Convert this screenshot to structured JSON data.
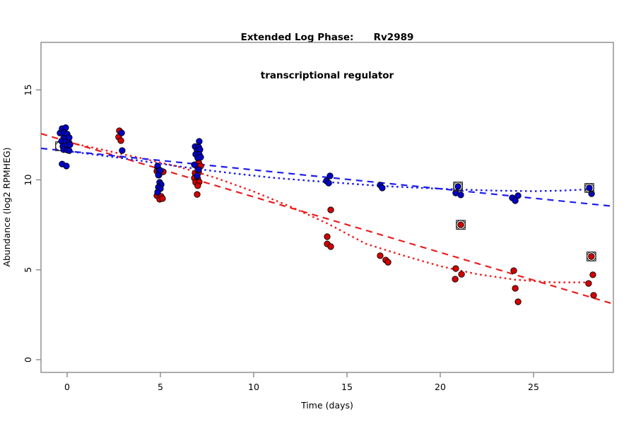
{
  "window": {
    "kind": "r-plot-figure"
  },
  "chart_data": {
    "type": "scatter",
    "title_line1": "Extended Log Phase:      Rv2989",
    "title_line2": "transcriptional regulator",
    "xlabel": "Time  (days)",
    "ylabel": "Abundance  (log2 RPMHEG)",
    "xlim": [
      -1.4,
      29.28
    ],
    "ylim": [
      -0.71,
      17.64
    ],
    "x_ticks": [
      0,
      5,
      10,
      15,
      20,
      25
    ],
    "y_ticks": [
      0,
      5,
      10,
      15
    ],
    "grid": "off",
    "legend": "none",
    "axis_color": "#8a8a8a",
    "label_color": "#000000",
    "series": [
      {
        "name": "red-condition",
        "point_color": "#d40000",
        "line_color": "#ee1c1c",
        "points": [
          [
            2.8,
            12.73
          ],
          [
            2.76,
            12.38
          ],
          [
            2.88,
            12.18
          ],
          [
            4.85,
            10.69
          ],
          [
            4.81,
            10.48
          ],
          [
            5.15,
            10.45
          ],
          [
            4.92,
            10.26
          ],
          [
            4.81,
            9.12
          ],
          [
            5.04,
            9.08
          ],
          [
            4.96,
            8.92
          ],
          [
            5.11,
            8.96
          ],
          [
            7.05,
            10.96
          ],
          [
            7.0,
            10.73
          ],
          [
            7.16,
            10.77
          ],
          [
            6.86,
            10.37
          ],
          [
            7.05,
            10.41
          ],
          [
            6.82,
            10.1
          ],
          [
            7.0,
            10.06
          ],
          [
            6.89,
            9.86
          ],
          [
            7.08,
            9.88
          ],
          [
            7.0,
            9.67
          ],
          [
            6.97,
            9.19
          ],
          [
            14.13,
            8.33
          ],
          [
            13.94,
            6.84
          ],
          [
            13.94,
            6.44
          ],
          [
            14.13,
            6.29
          ],
          [
            16.78,
            5.78
          ],
          [
            17.08,
            5.54
          ],
          [
            17.2,
            5.42
          ],
          [
            20.83,
            5.07
          ],
          [
            21.14,
            4.75
          ],
          [
            20.8,
            4.48
          ],
          [
            23.94,
            4.95
          ],
          [
            24.02,
            3.97
          ],
          [
            24.17,
            3.22
          ],
          [
            28.18,
            4.72
          ],
          [
            27.95,
            4.24
          ],
          [
            28.22,
            3.58
          ]
        ],
        "flagged_points": [
          [
            21.1,
            7.5
          ],
          [
            28.1,
            5.74
          ]
        ],
        "linear_fit": {
          "x": [
            -1.4,
            29.28
          ],
          "y": [
            12.57,
            3.1
          ]
        },
        "smooth_fit": [
          [
            0,
            12.1
          ],
          [
            2,
            11.65
          ],
          [
            4,
            11.2
          ],
          [
            6,
            10.72
          ],
          [
            8,
            10.1
          ],
          [
            10,
            9.35
          ],
          [
            12,
            8.5
          ],
          [
            14,
            7.55
          ],
          [
            16,
            6.45
          ],
          [
            18,
            5.8
          ],
          [
            20,
            5.2
          ],
          [
            22,
            4.75
          ],
          [
            24,
            4.45
          ],
          [
            26,
            4.3
          ],
          [
            28.1,
            4.3
          ]
        ]
      },
      {
        "name": "blue-condition",
        "point_color": "#0000c8",
        "line_color": "#1c1cee",
        "points": [
          [
            -0.27,
            12.85
          ],
          [
            -0.08,
            12.9
          ],
          [
            -0.38,
            12.6
          ],
          [
            -0.15,
            12.62
          ],
          [
            0.0,
            12.55
          ],
          [
            -0.19,
            12.3
          ],
          [
            0.11,
            12.35
          ],
          [
            -0.3,
            12.15
          ],
          [
            -0.08,
            12.1
          ],
          [
            0.11,
            12.05
          ],
          [
            -0.23,
            11.87
          ],
          [
            0.0,
            11.92
          ],
          [
            0.15,
            11.95
          ],
          [
            -0.19,
            11.68
          ],
          [
            0.0,
            11.66
          ],
          [
            0.11,
            11.62
          ],
          [
            -0.27,
            10.88
          ],
          [
            -0.04,
            10.77
          ],
          [
            2.92,
            12.61
          ],
          [
            2.95,
            11.63
          ],
          [
            4.85,
            10.77
          ],
          [
            4.92,
            10.5
          ],
          [
            5.0,
            10.52
          ],
          [
            4.89,
            10.26
          ],
          [
            4.96,
            9.86
          ],
          [
            5.04,
            9.74
          ],
          [
            4.89,
            9.59
          ],
          [
            5.0,
            9.51
          ],
          [
            4.85,
            9.31
          ],
          [
            7.08,
            12.14
          ],
          [
            6.86,
            11.85
          ],
          [
            7.05,
            11.82
          ],
          [
            6.97,
            11.63
          ],
          [
            7.12,
            11.68
          ],
          [
            6.89,
            11.42
          ],
          [
            7.08,
            11.42
          ],
          [
            7.0,
            11.22
          ],
          [
            7.16,
            11.26
          ],
          [
            6.82,
            10.84
          ],
          [
            7.05,
            10.57
          ],
          [
            6.97,
            10.22
          ],
          [
            14.09,
            10.22
          ],
          [
            13.9,
            9.94
          ],
          [
            14.02,
            9.82
          ],
          [
            16.78,
            9.71
          ],
          [
            16.89,
            9.55
          ],
          [
            20.83,
            9.27
          ],
          [
            21.1,
            9.16
          ],
          [
            23.86,
            9.0
          ],
          [
            24.17,
            9.12
          ],
          [
            24.02,
            8.84
          ],
          [
            28.11,
            9.23
          ]
        ],
        "flagged_points": [
          [
            20.95,
            9.63
          ],
          [
            27.99,
            9.55
          ]
        ],
        "hidden_flag_marker": [
          -0.38,
          11.87
        ],
        "linear_fit": {
          "x": [
            -1.4,
            29.28
          ],
          "y": [
            11.75,
            8.53
          ]
        },
        "smooth_fit": [
          [
            0,
            11.6
          ],
          [
            3,
            11.2
          ],
          [
            5,
            10.9
          ],
          [
            7,
            10.6
          ],
          [
            9,
            10.35
          ],
          [
            11,
            10.12
          ],
          [
            13,
            9.95
          ],
          [
            15,
            9.8
          ],
          [
            17,
            9.65
          ],
          [
            19,
            9.55
          ],
          [
            21,
            9.46
          ],
          [
            23,
            9.4
          ],
          [
            25,
            9.37
          ],
          [
            26.5,
            9.4
          ],
          [
            28.1,
            9.48
          ]
        ]
      }
    ]
  }
}
